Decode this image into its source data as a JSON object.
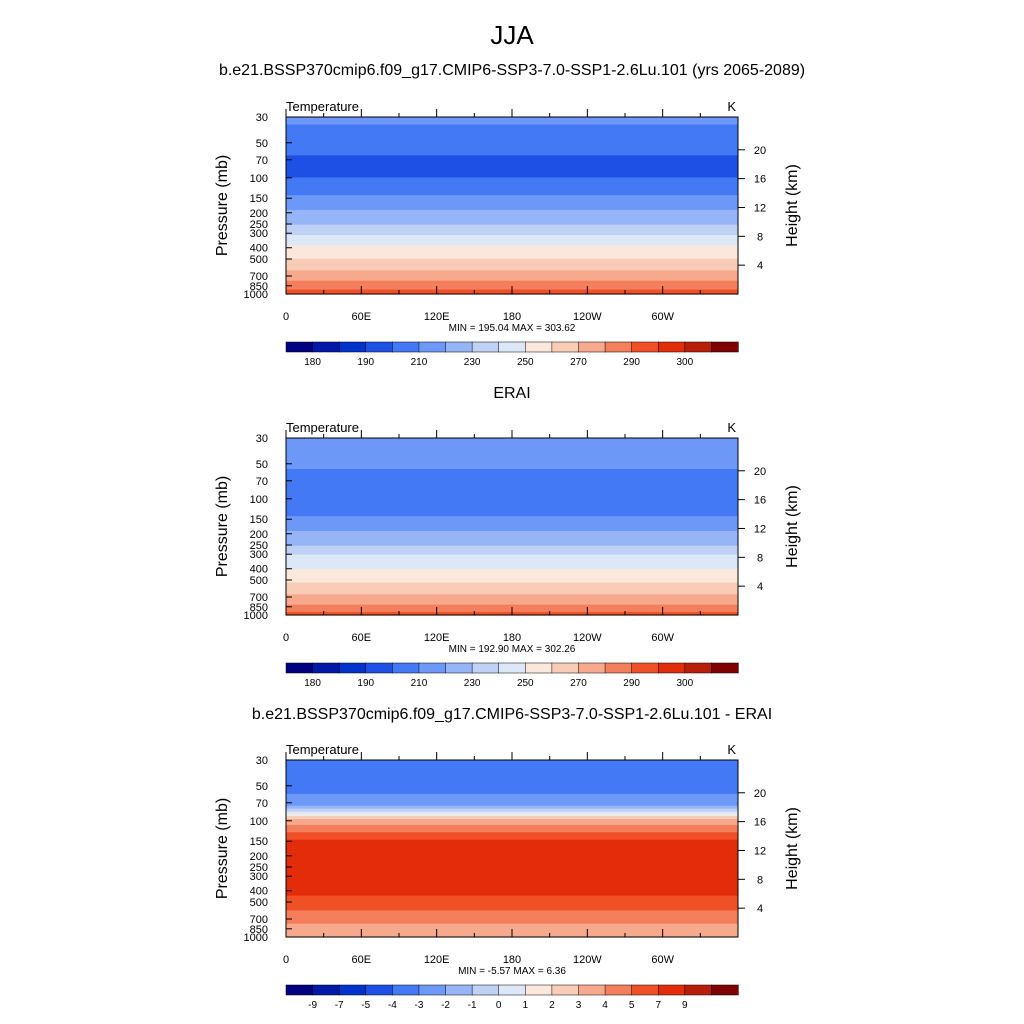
{
  "figure": {
    "season": "JJA",
    "panels": [
      {
        "title": "b.e21.BSSP370cmip6.f09_g17.CMIP6-SSP3-7.0-SSP1-2.6Lu.101 (yrs 2065-2089)",
        "left_label": "Temperature",
        "right_label": "K",
        "stats": "MIN = 195.04  MAX = 303.62",
        "colorbar_labels": [
          "180",
          "190",
          "210",
          "230",
          "250",
          "270",
          "290",
          "300"
        ]
      },
      {
        "title": "ERAI",
        "left_label": "Temperature",
        "right_label": "K",
        "stats": "MIN = 192.90  MAX = 302.26",
        "colorbar_labels": [
          "180",
          "190",
          "210",
          "230",
          "250",
          "270",
          "290",
          "300"
        ]
      },
      {
        "title": "b.e21.BSSP370cmip6.f09_g17.CMIP6-SSP3-7.0-SSP1-2.6Lu.101 - ERAI",
        "left_label": "Temperature",
        "right_label": "K",
        "stats": "MIN =  -5.57  MAX =   6.36",
        "colorbar_labels": [
          "-9",
          "-7",
          "-5",
          "-4",
          "-3",
          "-2",
          "-1",
          "0",
          "1",
          "2",
          "3",
          "4",
          "5",
          "7",
          "9"
        ]
      }
    ],
    "axes": {
      "ylabel": "Pressure (mb)",
      "y2label": "Height (km)",
      "pressure_ticks": [
        "30",
        "50",
        "70",
        "100",
        "150",
        "200",
        "250",
        "300",
        "400",
        "500",
        "700",
        "850",
        "1000"
      ],
      "height_ticks": [
        "20",
        "16",
        "12",
        "8",
        "4"
      ],
      "lon_ticks": [
        "0",
        "60E",
        "120E",
        "180",
        "120W",
        "60W"
      ]
    }
  },
  "colors": {
    "abs_palette": [
      "#000080",
      "#0019a6",
      "#0033cc",
      "#1f50e6",
      "#4479f5",
      "#6d98f7",
      "#95b5f7",
      "#bfd1f5",
      "#dce8f7",
      "#fbe8dc",
      "#f8ccb6",
      "#f7a98d",
      "#f47f5c",
      "#f05027",
      "#e22d0a",
      "#b81f0a",
      "#7e0000"
    ],
    "diff_palette": [
      "#000080",
      "#0019a6",
      "#0033cc",
      "#1f50e6",
      "#4479f5",
      "#6d98f7",
      "#95b5f7",
      "#bfd1f5",
      "#dce8f7",
      "#fbe8dc",
      "#f8ccb6",
      "#f7a98d",
      "#f47f5c",
      "#f05027",
      "#e22d0a",
      "#b81f0a",
      "#7e0000"
    ]
  },
  "chart_data": [
    {
      "type": "heatmap",
      "title": "b.e21.BSSP370cmip6.f09_g17.CMIP6-SSP3-7.0-SSP1-2.6Lu.101 (yrs 2065-2089)",
      "xlabel": "",
      "ylabel": "Pressure (mb)",
      "y2label": "Height (km)",
      "xlim": [
        0,
        360
      ],
      "ylim": [
        1000,
        30
      ],
      "yscale": "log",
      "variable": "Temperature",
      "units": "K",
      "min": 195.04,
      "max": 303.62,
      "levels": [
        180,
        185,
        190,
        200,
        210,
        220,
        230,
        240,
        250,
        260,
        270,
        280,
        290,
        295,
        300,
        305
      ],
      "profile": {
        "pressure": [
          30,
          50,
          70,
          100,
          150,
          200,
          250,
          300,
          400,
          500,
          700,
          850,
          1000
        ],
        "value": [
          212,
          205,
          198,
          200,
          212,
          222,
          230,
          238,
          252,
          260,
          275,
          285,
          295
        ]
      },
      "grid": false
    },
    {
      "type": "heatmap",
      "title": "ERAI",
      "xlabel": "",
      "ylabel": "Pressure (mb)",
      "y2label": "Height (km)",
      "xlim": [
        0,
        360
      ],
      "ylim": [
        1000,
        30
      ],
      "yscale": "log",
      "variable": "Temperature",
      "units": "K",
      "min": 192.9,
      "max": 302.26,
      "levels": [
        180,
        185,
        190,
        200,
        210,
        220,
        230,
        240,
        250,
        260,
        270,
        280,
        290,
        295,
        300,
        305
      ],
      "profile": {
        "pressure": [
          30,
          50,
          70,
          100,
          150,
          200,
          250,
          300,
          400,
          500,
          700,
          850,
          1000
        ],
        "value": [
          218,
          212,
          205,
          200,
          212,
          222,
          230,
          240,
          250,
          258,
          272,
          282,
          293
        ]
      },
      "grid": false
    },
    {
      "type": "heatmap",
      "title": "b.e21.BSSP370cmip6.f09_g17.CMIP6-SSP3-7.0-SSP1-2.6Lu.101 - ERAI",
      "xlabel": "",
      "ylabel": "Pressure (mb)",
      "y2label": "Height (km)",
      "xlim": [
        0,
        360
      ],
      "ylim": [
        1000,
        30
      ],
      "yscale": "log",
      "variable": "Temperature",
      "units": "K",
      "min": -5.57,
      "max": 6.36,
      "levels": [
        -11,
        -9,
        -7,
        -5,
        -4,
        -3,
        -2,
        -1,
        0,
        1,
        2,
        3,
        4,
        5,
        7,
        9,
        11
      ],
      "profile": {
        "pressure": [
          30,
          50,
          70,
          80,
          90,
          100,
          150,
          200,
          300,
          400,
          500,
          700,
          850,
          1000
        ],
        "value": [
          -4.5,
          -4.2,
          -3.8,
          -1.5,
          0.5,
          2.5,
          5.2,
          5.5,
          5.5,
          5.4,
          4.5,
          3.5,
          2.5,
          2.0
        ]
      },
      "grid": false
    }
  ]
}
